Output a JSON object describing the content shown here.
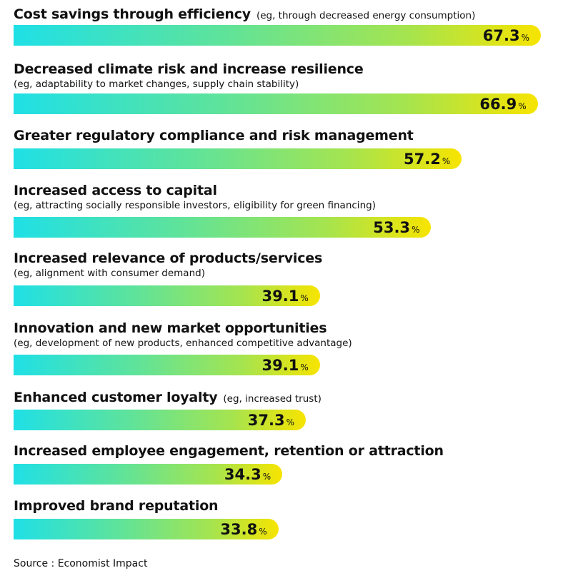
{
  "chart_data": {
    "type": "bar",
    "orientation": "horizontal",
    "unit": "%",
    "categories": [
      {
        "title": "Cost savings through efficiency",
        "subtitle": "(eg, through decreased energy consumption)",
        "inline": true
      },
      {
        "title": "Decreased climate risk and increase resilience",
        "subtitle": "(eg, adaptability to market changes, supply chain stability)",
        "inline": false
      },
      {
        "title": "Greater regulatory compliance and risk management",
        "subtitle": "",
        "inline": false
      },
      {
        "title": "Increased access to capital",
        "subtitle": "(eg, attracting socially responsible investors, eligibility for green financing)",
        "inline": false
      },
      {
        "title": "Increased relevance of products/services",
        "subtitle": "(eg, alignment with consumer demand)",
        "inline": false
      },
      {
        "title": "Innovation and new market opportunities",
        "subtitle": "(eg, development of new products, enhanced competitive advantage)",
        "inline": false
      },
      {
        "title": "Enhanced customer loyalty",
        "subtitle": "(eg, increased trust)",
        "inline": true
      },
      {
        "title": "Increased employee engagement, retention or attraction",
        "subtitle": "",
        "inline": false
      },
      {
        "title": "Improved brand reputation",
        "subtitle": "",
        "inline": false
      }
    ],
    "values": [
      67.3,
      66.9,
      57.2,
      53.3,
      39.1,
      39.1,
      37.3,
      34.3,
      33.8
    ],
    "value_labels": [
      "67.3",
      "66.9",
      "57.2",
      "53.3",
      "39.1",
      "39.1",
      "37.3",
      "34.3",
      "33.8"
    ],
    "percent_sign": "%",
    "colors": {
      "gradient_start": "#1fe0e6",
      "gradient_mid": "#a6e44e",
      "gradient_end": "#f7e400"
    }
  },
  "source": "Source : Economist Impact"
}
